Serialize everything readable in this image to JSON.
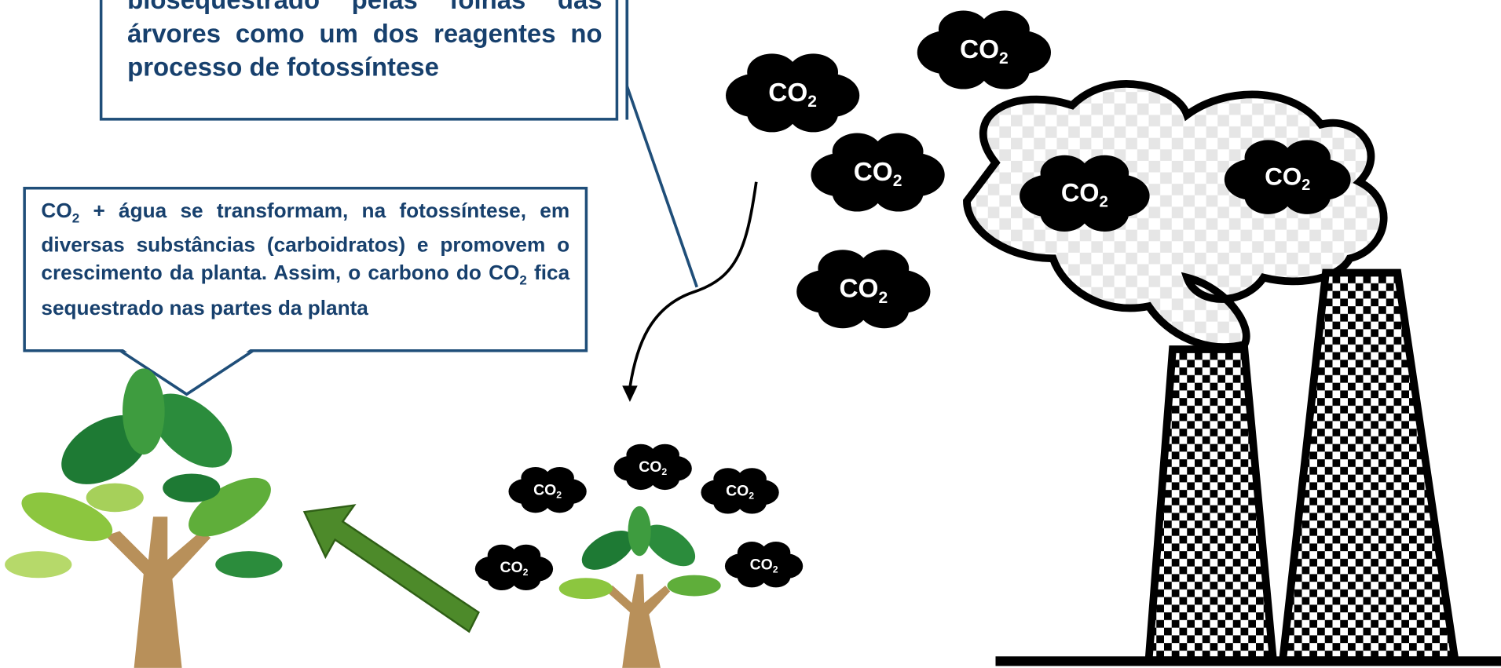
{
  "top_box": {
    "text": "biosequestrado pelas folhas das árvores como um dos reagentes no processo de fotossíntese"
  },
  "middle_box": {
    "parts": [
      "CO",
      "2",
      " + água se transformam, na fotossíntese, em diversas substâncias (carboidratos) e promovem o crescimento da planta. Assim, o carbono do CO",
      "2",
      " fica sequestrado nas partes da planta"
    ]
  },
  "co2_label": {
    "main": "CO",
    "sub": "2"
  }
}
